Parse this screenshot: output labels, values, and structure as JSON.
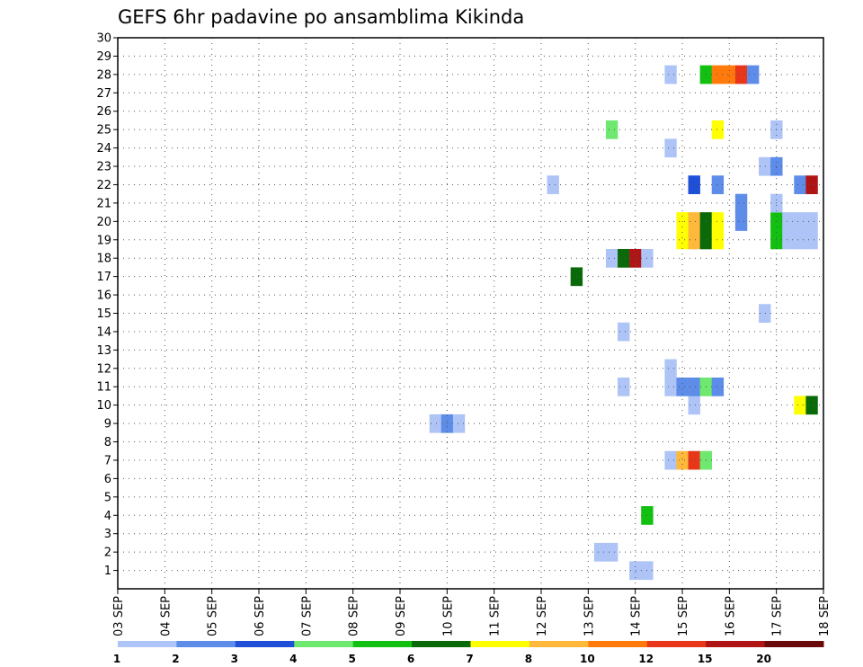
{
  "chart_data": {
    "type": "heatmap",
    "title": "GEFS 6hr padavine po ansamblima Kikinda",
    "xlabel": "",
    "ylabel": "",
    "x_ticks": [
      "03 SEP",
      "04 SEP",
      "05 SEP",
      "06 SEP",
      "07 SEP",
      "08 SEP",
      "09 SEP",
      "10 SEP",
      "11 SEP",
      "12 SEP",
      "13 SEP",
      "14 SEP",
      "15 SEP",
      "16 SEP",
      "17 SEP",
      "18 SEP"
    ],
    "y_ticks": [
      1,
      2,
      3,
      4,
      5,
      6,
      7,
      8,
      9,
      10,
      11,
      12,
      13,
      14,
      15,
      16,
      17,
      18,
      19,
      20,
      21,
      22,
      23,
      24,
      25,
      26,
      27,
      28,
      29,
      30
    ],
    "xlim_days": [
      3,
      18
    ],
    "ylim": [
      0,
      30
    ],
    "grid": true,
    "colorbar": {
      "labels": [
        "1",
        "2",
        "3",
        "4",
        "5",
        "6",
        "7",
        "8",
        "10",
        "12",
        "15",
        "20"
      ],
      "colors": [
        "#aec4f6",
        "#5d8de8",
        "#1e4fd6",
        "#6ee86e",
        "#12c012",
        "#0a6a0a",
        "#ffff00",
        "#ffb93a",
        "#ff7a0a",
        "#e8361a",
        "#b01515",
        "#6b0a0a"
      ]
    },
    "cells": [
      {
        "m": 1,
        "t": "14 SEP 00Z",
        "c": 0
      },
      {
        "m": 1,
        "t": "14 SEP 06Z",
        "c": 0
      },
      {
        "m": 2,
        "t": "13 SEP 06Z",
        "c": 0
      },
      {
        "m": 2,
        "t": "13 SEP 12Z",
        "c": 0
      },
      {
        "m": 4,
        "t": "14 SEP 06Z",
        "c": 4
      },
      {
        "m": 7,
        "t": "14 SEP 18Z",
        "c": 0
      },
      {
        "m": 7,
        "t": "15 SEP 00Z",
        "c": 7
      },
      {
        "m": 7,
        "t": "15 SEP 06Z",
        "c": 9
      },
      {
        "m": 7,
        "t": "15 SEP 12Z",
        "c": 3
      },
      {
        "m": 9,
        "t": "09 SEP 18Z",
        "c": 0
      },
      {
        "m": 9,
        "t": "10 SEP 00Z",
        "c": 1
      },
      {
        "m": 9,
        "t": "10 SEP 06Z",
        "c": 0
      },
      {
        "m": 10,
        "t": "15 SEP 06Z",
        "c": 0
      },
      {
        "m": 10,
        "t": "17 SEP 12Z",
        "c": 6
      },
      {
        "m": 10,
        "t": "17 SEP 18Z",
        "c": 5
      },
      {
        "m": 11,
        "t": "13 SEP 18Z",
        "c": 0
      },
      {
        "m": 11,
        "t": "14 SEP 18Z",
        "c": 0
      },
      {
        "m": 11,
        "t": "15 SEP 00Z",
        "c": 1
      },
      {
        "m": 11,
        "t": "15 SEP 06Z",
        "c": 1
      },
      {
        "m": 11,
        "t": "15 SEP 12Z",
        "c": 3
      },
      {
        "m": 11,
        "t": "15 SEP 18Z",
        "c": 1
      },
      {
        "m": 12,
        "t": "14 SEP 18Z",
        "c": 0
      },
      {
        "m": 14,
        "t": "13 SEP 18Z",
        "c": 0
      },
      {
        "m": 15,
        "t": "16 SEP 18Z",
        "c": 0
      },
      {
        "m": 17,
        "t": "12 SEP 18Z",
        "c": 5
      },
      {
        "m": 18,
        "t": "13 SEP 12Z",
        "c": 0
      },
      {
        "m": 18,
        "t": "13 SEP 18Z",
        "c": 5
      },
      {
        "m": 18,
        "t": "14 SEP 00Z",
        "c": 10
      },
      {
        "m": 18,
        "t": "14 SEP 06Z",
        "c": 0
      },
      {
        "m": 19,
        "t": "15 SEP 00Z",
        "c": 6
      },
      {
        "m": 19,
        "t": "15 SEP 06Z",
        "c": 7
      },
      {
        "m": 19,
        "t": "15 SEP 12Z",
        "c": 5
      },
      {
        "m": 19,
        "t": "15 SEP 18Z",
        "c": 6
      },
      {
        "m": 19,
        "t": "17 SEP 00Z",
        "c": 4
      },
      {
        "m": 19,
        "t": "17 SEP 06Z",
        "c": 0
      },
      {
        "m": 19,
        "t": "17 SEP 12Z",
        "c": 0
      },
      {
        "m": 19,
        "t": "17 SEP 18Z",
        "c": 0
      },
      {
        "m": 20,
        "t": "15 SEP 00Z",
        "c": 6
      },
      {
        "m": 20,
        "t": "15 SEP 06Z",
        "c": 7
      },
      {
        "m": 20,
        "t": "15 SEP 12Z",
        "c": 5
      },
      {
        "m": 20,
        "t": "15 SEP 18Z",
        "c": 6
      },
      {
        "m": 20,
        "t": "16 SEP 06Z",
        "c": 1
      },
      {
        "m": 20,
        "t": "17 SEP 00Z",
        "c": 4
      },
      {
        "m": 20,
        "t": "17 SEP 06Z",
        "c": 0
      },
      {
        "m": 20,
        "t": "17 SEP 12Z",
        "c": 0
      },
      {
        "m": 20,
        "t": "17 SEP 18Z",
        "c": 0
      },
      {
        "m": 21,
        "t": "16 SEP 06Z",
        "c": 1
      },
      {
        "m": 21,
        "t": "17 SEP 00Z",
        "c": 0
      },
      {
        "m": 22,
        "t": "12 SEP 06Z",
        "c": 0
      },
      {
        "m": 22,
        "t": "15 SEP 06Z",
        "c": 2
      },
      {
        "m": 22,
        "t": "15 SEP 18Z",
        "c": 1
      },
      {
        "m": 22,
        "t": "17 SEP 12Z",
        "c": 1
      },
      {
        "m": 22,
        "t": "17 SEP 18Z",
        "c": 10
      },
      {
        "m": 23,
        "t": "16 SEP 18Z",
        "c": 0
      },
      {
        "m": 23,
        "t": "17 SEP 00Z",
        "c": 1
      },
      {
        "m": 24,
        "t": "14 SEP 18Z",
        "c": 0
      },
      {
        "m": 25,
        "t": "13 SEP 12Z",
        "c": 3
      },
      {
        "m": 25,
        "t": "15 SEP 18Z",
        "c": 6
      },
      {
        "m": 25,
        "t": "17 SEP 00Z",
        "c": 0
      },
      {
        "m": 28,
        "t": "14 SEP 18Z",
        "c": 0
      },
      {
        "m": 28,
        "t": "15 SEP 12Z",
        "c": 4
      },
      {
        "m": 28,
        "t": "15 SEP 18Z",
        "c": 8
      },
      {
        "m": 28,
        "t": "16 SEP 00Z",
        "c": 8
      },
      {
        "m": 28,
        "t": "16 SEP 06Z",
        "c": 9
      },
      {
        "m": 28,
        "t": "16 SEP 12Z",
        "c": 1
      }
    ]
  }
}
